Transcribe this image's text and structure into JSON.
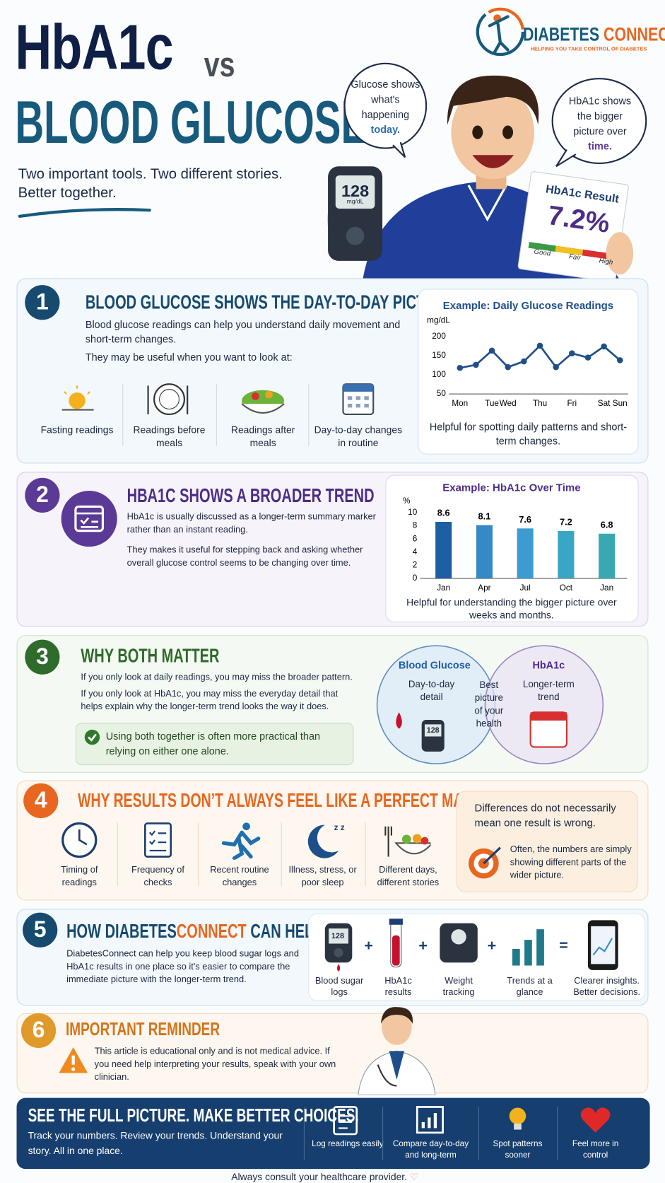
{
  "header": {
    "title_line1": "HbA1c",
    "title_vs": "vs",
    "title_line2": "BLOOD GLUCOSE",
    "subtitle_1": "Two important tools. Two different stories.",
    "subtitle_2": "Better together."
  },
  "brand": {
    "name_1": "DIABETES",
    "name_2": "CONNECT",
    "tagline": "HELPING YOU TAKE CONTROL OF DIABETES"
  },
  "hero": {
    "bubble_left": {
      "text": "Glucose shows what's happening",
      "highlight": "today."
    },
    "bubble_right": {
      "text": "HbA1c shows the bigger picture over",
      "highlight": "time."
    },
    "meter": {
      "reading": "128",
      "unit": "mg/dL"
    },
    "card": {
      "title": "HbA1c Result",
      "value": "7.2%",
      "scale": [
        "Good",
        "Fair",
        "High"
      ]
    }
  },
  "section_1": {
    "number": "1",
    "title": "BLOOD GLUCOSE SHOWS THE DAY-TO-DAY PICTURE",
    "body": "Blood glucose readings can help you understand daily movement and short-term changes.",
    "lead": "They may be useful when you want to look at:",
    "items": [
      "Fasting readings",
      "Readings before meals",
      "Readings after meals",
      "Day-to-day changes in routine"
    ],
    "chart_caption": "Helpful for spotting daily patterns and short-term changes."
  },
  "section_2": {
    "number": "2",
    "title": "HBA1C SHOWS A BROADER TREND",
    "body_1": "HbA1c is usually discussed as a longer-term summary marker rather than an instant reading.",
    "body_2": "They makes it useful for stepping back and asking whether overall glucose control seems to be changing over time.",
    "chart_caption": "Helpful for understanding the bigger picture over weeks and months."
  },
  "section_3": {
    "number": "3",
    "title": "WHY BOTH MATTER",
    "body_1": "If you only look at daily readings, you may miss the broader pattern.",
    "body_2": "If you only look at HbA1c, you may miss the everyday detail that helps explain why the longer-term trend looks the way it does.",
    "callout": "Using both together is often more practical than relying on either one alone.",
    "venn": {
      "left_title": "Blood Glucose",
      "left_text": "Day-to-day detail",
      "center": "Best picture of your health",
      "right_title": "HbA1c",
      "right_text": "Longer-term trend",
      "meter": "128"
    }
  },
  "section_4": {
    "number": "4",
    "title": "WHY RESULTS DON’T ALWAYS FEEL LIKE A PERFECT MATCH",
    "items": [
      "Timing of readings",
      "Frequency of checks",
      "Recent routine changes",
      "Illness, stress, or poor sleep",
      "Different days, different stories"
    ],
    "side_title": "Differences do not necessarily mean one result is wrong.",
    "side_text": "Often, the numbers are simply showing different parts of the wider picture."
  },
  "section_5": {
    "number": "5",
    "title_1": "HOW DIABETES",
    "title_2": "CONNECT",
    "title_3": "CAN HELP",
    "body": "DiabetesConnect can help you keep blood sugar logs and HbA1c results in one place so it's easier to compare the immediate picture with the longer-term trend.",
    "meter": "128",
    "items": [
      "Blood sugar logs",
      "HbA1c results",
      "Weight tracking",
      "Trends at a glance"
    ],
    "plus": "+",
    "equals": "=",
    "result": "Clearer insights. Better decisions."
  },
  "section_6": {
    "number": "6",
    "title": "IMPORTANT REMINDER",
    "text": "This article is educational only and is not medical advice. If you need help interpreting your results, speak with your own clinician."
  },
  "footer": {
    "title": "SEE THE FULL PICTURE. MAKE BETTER CHOICES.",
    "text": "Track your numbers. Review your trends. Understand your story. All in one place.",
    "items": [
      "Log readings easily",
      "Compare day-to-day and long-term",
      "Spot patterns sooner",
      "Feel more in control"
    ],
    "note": "Always consult your healthcare provider."
  },
  "chart_data": [
    {
      "type": "line",
      "title": "Example: Daily Glucose Readings",
      "y_label": "mg/dL",
      "categories": [
        "Mon",
        null,
        "Tue",
        "Wed",
        null,
        "Thu",
        null,
        "Fri",
        null,
        "Sat",
        "Sun"
      ],
      "values": [
        118,
        126,
        163,
        120,
        135,
        176,
        120,
        156,
        145,
        174,
        138
      ],
      "color": "#1f4f8a",
      "ylim": [
        50,
        200
      ],
      "yticks": [
        50,
        100,
        150,
        200
      ],
      "grid": false
    },
    {
      "type": "bar",
      "title": "Example: HbA1c Over Time",
      "y_label": "%",
      "categories": [
        "Jan",
        "Apr",
        "Jul",
        "Oct",
        "Jan"
      ],
      "values": [
        8.6,
        8.1,
        7.6,
        7.2,
        6.8
      ],
      "colors": [
        "#1d5fa3",
        "#3489c6",
        "#3c9bd0",
        "#3aa6c6",
        "#38a9b0"
      ],
      "ylim": [
        0,
        10
      ],
      "yticks": [
        0,
        2,
        4,
        6,
        8,
        10
      ],
      "grid": false
    }
  ]
}
